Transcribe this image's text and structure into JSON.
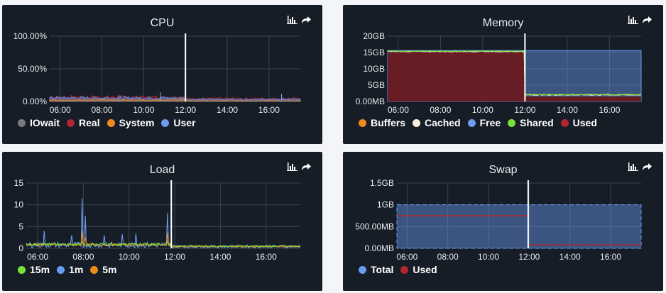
{
  "panels": {
    "cpu": {
      "title": "CPU",
      "legend": [
        {
          "label": "IOwait",
          "color": "#7a7a7a"
        },
        {
          "label": "Real",
          "color": "#b02530"
        },
        {
          "label": "System",
          "color": "#f08a1c"
        },
        {
          "label": "User",
          "color": "#6a9cf0"
        }
      ]
    },
    "memory": {
      "title": "Memory",
      "legend": [
        {
          "label": "Buffers",
          "color": "#f08a1c"
        },
        {
          "label": "Cached",
          "color": "#f4efd8"
        },
        {
          "label": "Free",
          "color": "#6a9cf0"
        },
        {
          "label": "Shared",
          "color": "#7be03a"
        },
        {
          "label": "Used",
          "color": "#b02530"
        }
      ]
    },
    "load": {
      "title": "Load",
      "legend": [
        {
          "label": "15m",
          "color": "#7be03a"
        },
        {
          "label": "1m",
          "color": "#6a9cf0"
        },
        {
          "label": "5m",
          "color": "#f08a1c"
        }
      ]
    },
    "swap": {
      "title": "Swap",
      "legend": [
        {
          "label": "Total",
          "color": "#6a9cf0"
        },
        {
          "label": "Used",
          "color": "#b02530"
        }
      ]
    }
  },
  "toolbar_icons": [
    "bar-chart-icon",
    "share-icon"
  ],
  "chart_data": [
    {
      "id": "cpu",
      "type": "area",
      "x_ticks": [
        "06:00",
        "08:00",
        "10:00",
        "12:00",
        "14:00",
        "16:00"
      ],
      "y_ticks": [
        "0.00%",
        "50.00%",
        "100.00%"
      ],
      "ylim": [
        0,
        100
      ],
      "x_range_hours": [
        5.5,
        17.5
      ],
      "marker_hour": 12,
      "grid": true,
      "legend_placement": "bottom-left",
      "series": [
        {
          "name": "User",
          "before": 5,
          "after": 3
        },
        {
          "name": "Real",
          "before": 6,
          "after": 4
        },
        {
          "name": "System",
          "before": 2,
          "after": 1
        },
        {
          "name": "IOwait",
          "before": 0.5,
          "after": 0.3
        }
      ]
    },
    {
      "id": "memory",
      "type": "area",
      "x_ticks": [
        "06:00",
        "08:00",
        "10:00",
        "12:00",
        "14:00",
        "16:00"
      ],
      "y_ticks": [
        "0.00MB",
        "5GB",
        "10GB",
        "15GB",
        "20GB"
      ],
      "ylim": [
        0,
        20
      ],
      "x_range_hours": [
        5.5,
        17.5
      ],
      "marker_hour": 12,
      "grid": true,
      "legend_placement": "bottom-left",
      "series": [
        {
          "name": "Free",
          "before": 15.6,
          "after": 15.6
        },
        {
          "name": "Used",
          "before": 15.2,
          "after": 1.5
        },
        {
          "name": "Cached",
          "before": 15.3,
          "after": 2
        },
        {
          "name": "Shared",
          "before": 15.4,
          "after": 2.1
        },
        {
          "name": "Buffers",
          "before": 0.1,
          "after": 0.1
        }
      ]
    },
    {
      "id": "load",
      "type": "line",
      "x_ticks": [
        "06:00",
        "08:00",
        "10:00",
        "12:00",
        "14:00",
        "16:00"
      ],
      "y_ticks": [
        "0",
        "5",
        "10",
        "15"
      ],
      "ylim": [
        0,
        15
      ],
      "x_range_hours": [
        5.5,
        17.5
      ],
      "marker_hour": 11.85,
      "grid": true,
      "legend_placement": "bottom-left",
      "series": [
        {
          "name": "1m",
          "baseline_before": 0.8,
          "baseline_after": 0.4,
          "spikes": [
            [
              6.3,
              4
            ],
            [
              7.5,
              3
            ],
            [
              7.95,
              11.5
            ],
            [
              8.1,
              7.5
            ],
            [
              8.9,
              3
            ],
            [
              9.7,
              3.2
            ],
            [
              10.3,
              3.4
            ],
            [
              11.7,
              8.2
            ]
          ]
        },
        {
          "name": "5m",
          "baseline_before": 0.8,
          "baseline_after": 0.4,
          "spikes": [
            [
              7.95,
              4
            ],
            [
              8.1,
              2.5
            ],
            [
              11.7,
              3.5
            ]
          ]
        },
        {
          "name": "15m",
          "baseline_before": 0.9,
          "baseline_after": 0.5,
          "spikes": [
            [
              7.95,
              1.5
            ],
            [
              11.7,
              1.6
            ]
          ]
        }
      ]
    },
    {
      "id": "swap",
      "type": "area",
      "x_ticks": [
        "06:00",
        "08:00",
        "10:00",
        "12:00",
        "14:00",
        "16:00"
      ],
      "y_ticks": [
        "0.00MB",
        "500.00MB",
        "1GB",
        "1.5GB"
      ],
      "ylim": [
        0,
        1.5
      ],
      "x_range_hours": [
        5.5,
        17.5
      ],
      "marker_hour": 11.95,
      "grid": true,
      "legend_placement": "bottom-left",
      "series": [
        {
          "name": "Total",
          "before": 1,
          "after": 1
        },
        {
          "name": "Used",
          "before": 0.75,
          "after": 0.08
        }
      ]
    }
  ]
}
